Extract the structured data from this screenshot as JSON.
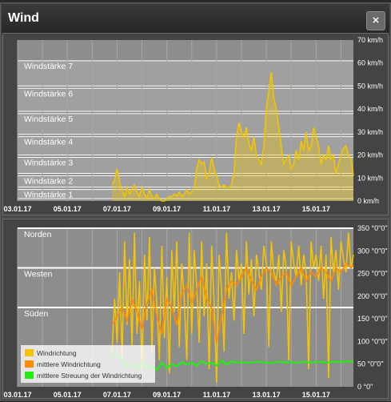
{
  "window": {
    "title": "Wind",
    "close_symbol": "×"
  },
  "colors": {
    "wind_speed": "#f2c600",
    "direction": "#f5c400",
    "mean_direction": "#ff8c00",
    "spread": "#22ee11",
    "plot_bg": "#8d8d8d",
    "band": "#b8b8b8"
  },
  "chart_data": [
    {
      "type": "area",
      "ylabel": "",
      "x_tick_labels": [
        "03.01.17",
        "05.01.17",
        "07.01.17",
        "09.01.17",
        "11.01.17",
        "13.01.17",
        "15.01.17"
      ],
      "y_tick_labels": [
        "0 km/h",
        "10 km/h",
        "20 km/h",
        "30 km/h",
        "40 km/h",
        "50 km/h",
        "60 km/h",
        "70 km/h"
      ],
      "ylim": [
        0,
        70
      ],
      "bands": [
        {
          "label": "Windstärke 1",
          "from": 1,
          "to": 5
        },
        {
          "label": "Windstärke 2",
          "from": 6,
          "to": 11
        },
        {
          "label": "Windstärke 3",
          "from": 12,
          "to": 19
        },
        {
          "label": "Windstärke 4",
          "from": 20,
          "to": 28
        },
        {
          "label": "Windstärke 5",
          "from": 29,
          "to": 38
        },
        {
          "label": "Windstärke 6",
          "from": 39,
          "to": 49
        },
        {
          "label": "Windstärke 7",
          "from": 50,
          "to": 61
        }
      ],
      "series": [
        {
          "x": [
            6.8,
            6.9,
            7.0,
            7.1,
            7.2,
            7.3,
            7.4,
            7.5,
            7.6,
            7.7,
            7.8,
            7.9,
            8.0,
            8.1,
            8.2,
            8.3,
            8.4,
            8.5,
            8.6,
            8.7,
            8.8,
            8.9,
            9.0,
            9.1,
            9.2,
            9.3,
            9.4,
            9.5,
            9.6,
            9.7,
            9.8,
            9.9,
            10.0,
            10.1,
            10.2,
            10.3,
            10.4,
            10.5,
            10.6,
            10.7,
            10.8,
            10.9,
            11.0,
            11.1,
            11.2,
            11.3,
            11.4,
            11.5,
            11.6,
            11.7,
            11.8,
            11.9,
            12.0,
            12.1,
            12.2,
            12.3,
            12.4,
            12.5,
            12.6,
            12.7,
            12.8,
            12.9,
            13.0,
            13.1,
            13.2,
            13.3,
            13.4,
            13.5,
            13.6,
            13.7,
            13.8,
            13.9,
            14.0,
            14.1,
            14.2,
            14.3,
            14.4,
            14.5,
            14.6,
            14.7,
            14.8,
            14.9,
            15.0,
            15.1,
            15.2,
            15.3,
            15.4,
            15.5,
            15.6,
            15.7,
            15.8,
            15.9,
            16.0,
            16.1,
            16.2,
            16.3,
            16.4,
            16.5
          ],
          "values": [
            7,
            9,
            14,
            8,
            5,
            2,
            6,
            3,
            5,
            7,
            4,
            2,
            6,
            3,
            1,
            5,
            2,
            1,
            3,
            1,
            0,
            0,
            1,
            2,
            2,
            3,
            2,
            4,
            2,
            3,
            5,
            3,
            4,
            5,
            14,
            18,
            16,
            17,
            10,
            12,
            19,
            14,
            11,
            7,
            6,
            7,
            6,
            6,
            7,
            12,
            28,
            34,
            30,
            28,
            32,
            25,
            22,
            28,
            20,
            18,
            16,
            24,
            40,
            48,
            56,
            45,
            40,
            32,
            24,
            16,
            18,
            20,
            14,
            16,
            22,
            18,
            26,
            22,
            30,
            22,
            24,
            32,
            28,
            24,
            16,
            20,
            18,
            24,
            18,
            20,
            12,
            16,
            20,
            23,
            24,
            20,
            18,
            11
          ]
        }
      ]
    },
    {
      "type": "line",
      "ylabel": "",
      "x_tick_labels": [
        "03.01.17",
        "05.01.17",
        "07.01.17",
        "09.01.17",
        "11.01.17",
        "13.01.17",
        "15.01.17"
      ],
      "y_tick_labels": [
        "0 °0\"",
        "50 °0\"0\"",
        "100 °0\"0\"",
        "150 °0\"0\"",
        "200 °0\"0\"",
        "250 °0\"0\"",
        "300 °0\"0\"",
        "350 °0\"0\""
      ],
      "ylim": [
        0,
        360
      ],
      "plot_lines": [
        {
          "label": "Norden",
          "value": 360
        },
        {
          "label": "Westen",
          "value": 270
        },
        {
          "label": "Süden",
          "value": 180
        }
      ],
      "legend": {
        "placement": "bottom-left",
        "items": [
          "Windrichtung",
          "mittlere Windrichtung",
          "mittlere Streuung der Windrichtung"
        ]
      },
      "series": [
        {
          "name": "Windrichtung",
          "x": [
            6.8,
            6.9,
            7.0,
            7.1,
            7.2,
            7.3,
            7.4,
            7.5,
            7.6,
            7.7,
            7.8,
            7.9,
            8.0,
            8.1,
            8.2,
            8.3,
            8.4,
            8.5,
            8.6,
            8.7,
            8.8,
            8.9,
            9.0,
            9.1,
            9.2,
            9.3,
            9.4,
            9.5,
            9.6,
            9.7,
            9.8,
            9.9,
            10.0,
            10.1,
            10.2,
            10.3,
            10.4,
            10.5,
            10.6,
            10.7,
            10.8,
            10.9,
            11.0,
            11.1,
            11.2,
            11.3,
            11.4,
            11.5,
            11.6,
            11.7,
            11.8,
            11.9,
            12.0,
            12.1,
            12.2,
            12.3,
            12.4,
            12.5,
            12.6,
            12.7,
            12.8,
            12.9,
            13.0,
            13.1,
            13.2,
            13.3,
            13.4,
            13.5,
            13.6,
            13.7,
            13.8,
            13.9,
            14.0,
            14.1,
            14.2,
            14.3,
            14.4,
            14.5,
            14.6,
            14.7,
            14.8,
            14.9,
            15.0,
            15.1,
            15.2,
            15.3,
            15.4,
            15.5,
            15.6,
            15.7,
            15.8,
            15.9,
            16.0,
            16.1,
            16.2,
            16.3,
            16.4,
            16.5
          ],
          "values": [
            80,
            200,
            100,
            260,
            60,
            330,
            140,
            290,
            90,
            350,
            120,
            240,
            40,
            300,
            150,
            340,
            80,
            270,
            190,
            60,
            320,
            110,
            250,
            30,
            310,
            170,
            330,
            90,
            280,
            200,
            60,
            350,
            120,
            310,
            230,
            100,
            330,
            160,
            280,
            40,
            320,
            190,
            10,
            300,
            220,
            80,
            350,
            200,
            260,
            150,
            310,
            240,
            280,
            120,
            330,
            210,
            290,
            160,
            300,
            260,
            220,
            320,
            280,
            90,
            330,
            260,
            240,
            300,
            170,
            310,
            270,
            60,
            330,
            280,
            250,
            320,
            230,
            300,
            260,
            40,
            330,
            270,
            300,
            240,
            320,
            200,
            300,
            20,
            340,
            260,
            310,
            220,
            330,
            290,
            260,
            350,
            270,
            300
          ]
        },
        {
          "name": "mittlere Windrichtung",
          "x": [
            6.8,
            7.0,
            7.2,
            7.4,
            7.6,
            7.8,
            8.0,
            8.2,
            8.4,
            8.6,
            8.8,
            9.0,
            9.2,
            9.4,
            9.6,
            9.8,
            10.0,
            10.2,
            10.4,
            10.6,
            10.8,
            11.0,
            11.2,
            11.4,
            11.6,
            11.8,
            12.0,
            12.2,
            12.4,
            12.6,
            12.8,
            13.0,
            13.2,
            13.4,
            13.6,
            13.8,
            14.0,
            14.2,
            14.4,
            14.6,
            14.8,
            15.0,
            15.2,
            15.4,
            15.6,
            15.8,
            16.0,
            16.2,
            16.4,
            16.5
          ],
          "values": [
            140,
            160,
            180,
            150,
            200,
            170,
            130,
            190,
            220,
            160,
            120,
            200,
            180,
            140,
            210,
            230,
            190,
            220,
            250,
            200,
            180,
            100,
            160,
            220,
            240,
            230,
            250,
            270,
            240,
            220,
            250,
            270,
            260,
            230,
            250,
            260,
            230,
            250,
            270,
            240,
            260,
            250,
            270,
            260,
            240,
            270,
            260,
            280,
            270,
            275
          ]
        },
        {
          "name": "mittlere Streuung der Windrichtung",
          "x": [
            6.8,
            7.0,
            7.2,
            7.4,
            7.6,
            7.8,
            8.0,
            8.2,
            8.4,
            8.6,
            8.8,
            9.0,
            9.2,
            9.4,
            9.6,
            9.8,
            10.0,
            10.2,
            10.4,
            10.6,
            10.8,
            11.0,
            11.2,
            11.4,
            11.6,
            11.8,
            12.0,
            12.2,
            12.4,
            12.6,
            12.8,
            13.0,
            13.2,
            13.4,
            13.6,
            13.8,
            14.0,
            14.2,
            14.4,
            14.6,
            14.8,
            15.0,
            15.2,
            15.4,
            15.6,
            15.8,
            16.0,
            16.2,
            16.4,
            16.5
          ],
          "values": [
            75,
            72,
            62,
            45,
            52,
            40,
            55,
            42,
            48,
            38,
            55,
            42,
            52,
            46,
            56,
            50,
            55,
            48,
            58,
            52,
            55,
            48,
            60,
            50,
            58,
            55,
            56,
            55,
            55,
            57,
            56,
            55,
            54,
            56,
            57,
            55,
            56,
            54,
            57,
            56,
            55,
            56,
            57,
            55,
            56,
            57,
            56,
            58,
            57,
            58
          ]
        }
      ]
    }
  ]
}
